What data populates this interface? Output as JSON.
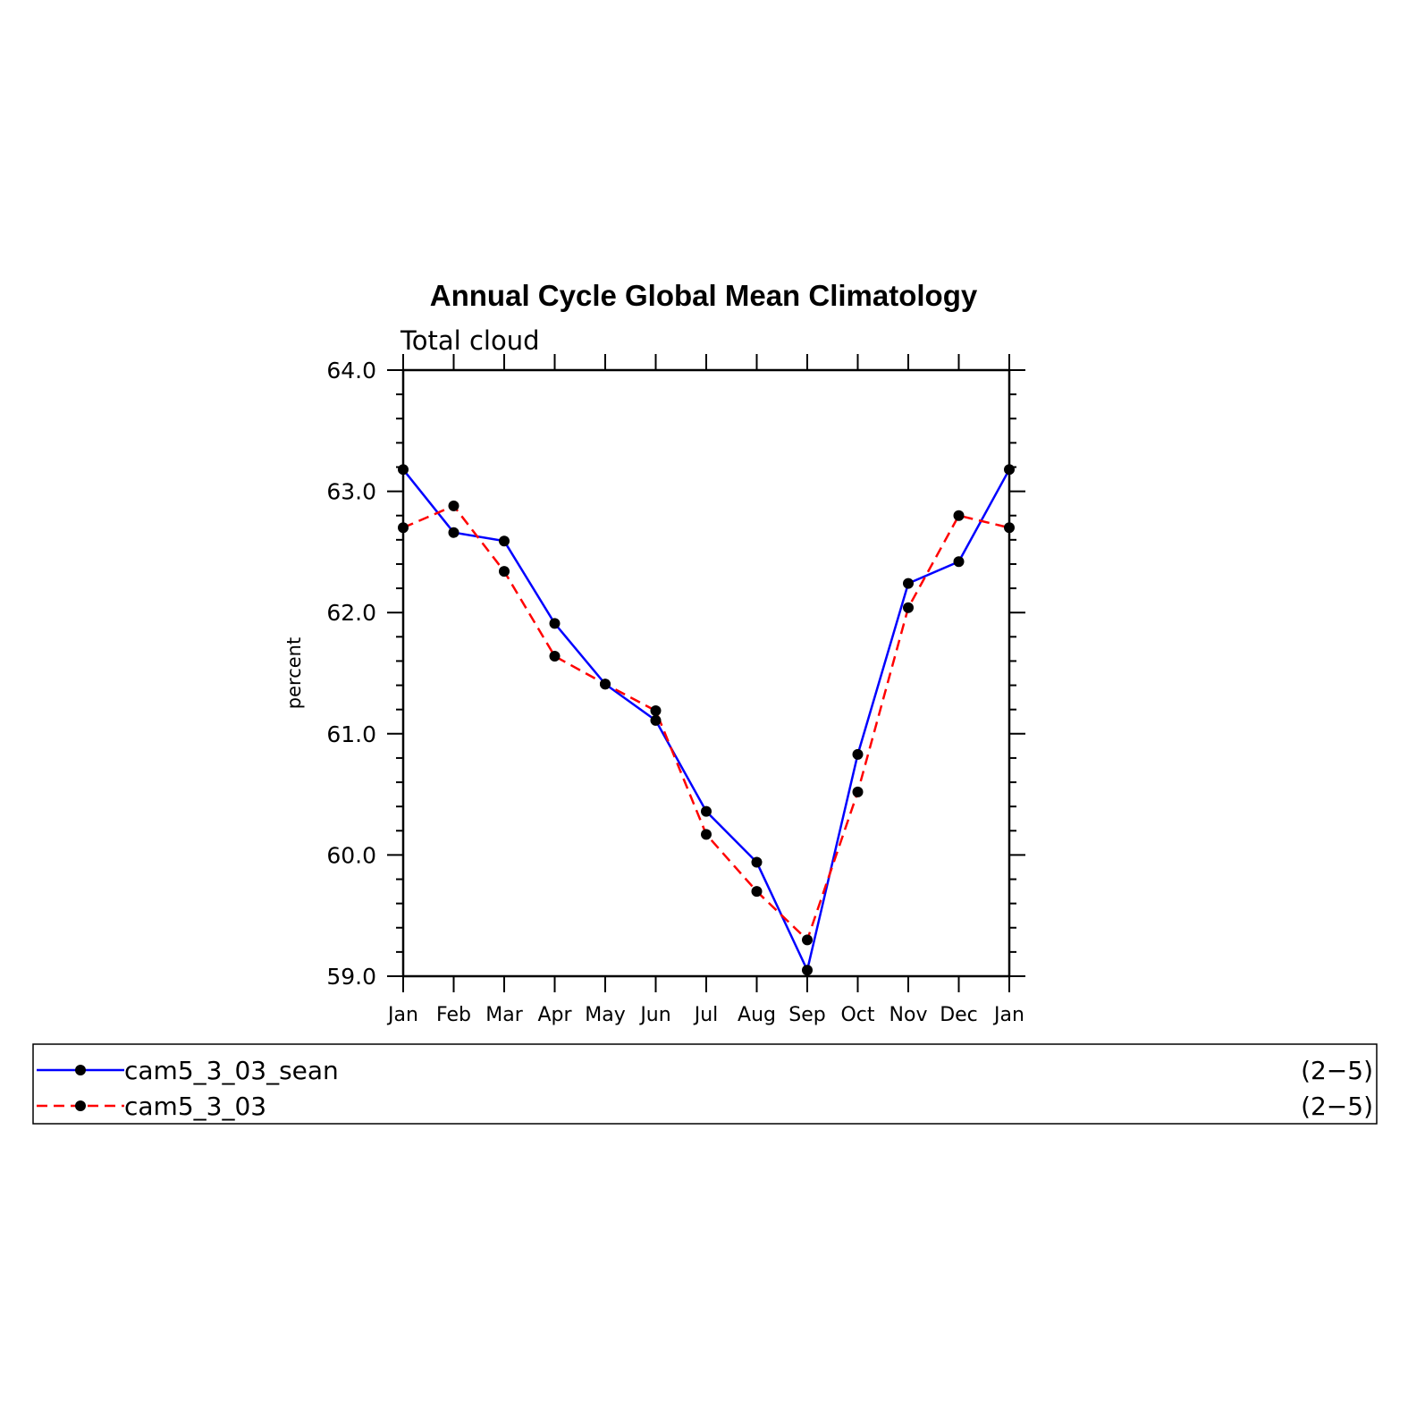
{
  "chart_data": {
    "type": "line",
    "title": "Annual Cycle Global Mean Climatology",
    "subtitle": "Total cloud",
    "ylabel": "percent",
    "xlabel": "",
    "ylim": [
      59.0,
      64.0
    ],
    "yticks": [
      "59.0",
      "60.0",
      "61.0",
      "62.0",
      "63.0",
      "64.0"
    ],
    "categories": [
      "Jan",
      "Feb",
      "Mar",
      "Apr",
      "May",
      "Jun",
      "Jul",
      "Aug",
      "Sep",
      "Oct",
      "Nov",
      "Dec",
      "Jan"
    ],
    "series": [
      {
        "name": "cam5_3_03_sean",
        "range": "(2−5)",
        "color": "#0000ff",
        "dash": "solid",
        "values": [
          63.18,
          62.66,
          62.59,
          61.91,
          61.41,
          61.11,
          60.36,
          59.94,
          59.05,
          60.83,
          62.24,
          62.42,
          63.18
        ]
      },
      {
        "name": "cam5_3_03",
        "range": "(2−5)",
        "color": "#ff0000",
        "dash": "dashed",
        "values": [
          62.7,
          62.88,
          62.34,
          61.64,
          61.41,
          61.19,
          60.17,
          59.7,
          59.3,
          60.52,
          62.04,
          62.8,
          62.7
        ]
      }
    ],
    "marker": "filled-circle",
    "marker_color": "#000000",
    "grid": false,
    "legend_position": "bottom"
  }
}
